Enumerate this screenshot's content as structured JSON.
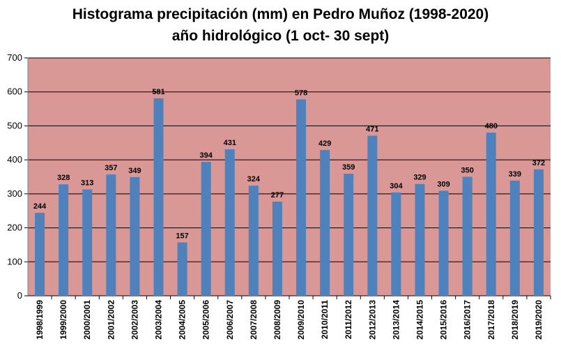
{
  "chart_data": {
    "type": "bar",
    "title": "Histograma precipitación (mm) en Pedro Muñoz (1998-2020)",
    "subtitle": "año hidrológico (1 oct- 30 sept)",
    "xlabel": "",
    "ylabel": "",
    "ylim": [
      0,
      700
    ],
    "yticks": [
      0,
      100,
      200,
      300,
      400,
      500,
      600,
      700
    ],
    "grid": true,
    "legend": "none",
    "colors": {
      "bar": "#4f81bd",
      "plot_bg": "#d99795",
      "grid": "#000000"
    },
    "categories": [
      "1998/1999",
      "1999/2000",
      "2000/2001",
      "2001/2002",
      "2002/2003",
      "2003/2004",
      "2004/2005",
      "2005/2006",
      "2006/2007",
      "2007/2008",
      "2008/2009",
      "2009/2010",
      "2010/2011",
      "2011/2012",
      "2012/2013",
      "2013/2014",
      "2014/2015",
      "2015/2016",
      "2016/2017",
      "2017/2018",
      "2018/2019",
      "2019/2020"
    ],
    "values": [
      244,
      328,
      313,
      357,
      349,
      581,
      157,
      394,
      431,
      324,
      277,
      578,
      429,
      359,
      471,
      304,
      329,
      309,
      350,
      480,
      339,
      372
    ]
  }
}
